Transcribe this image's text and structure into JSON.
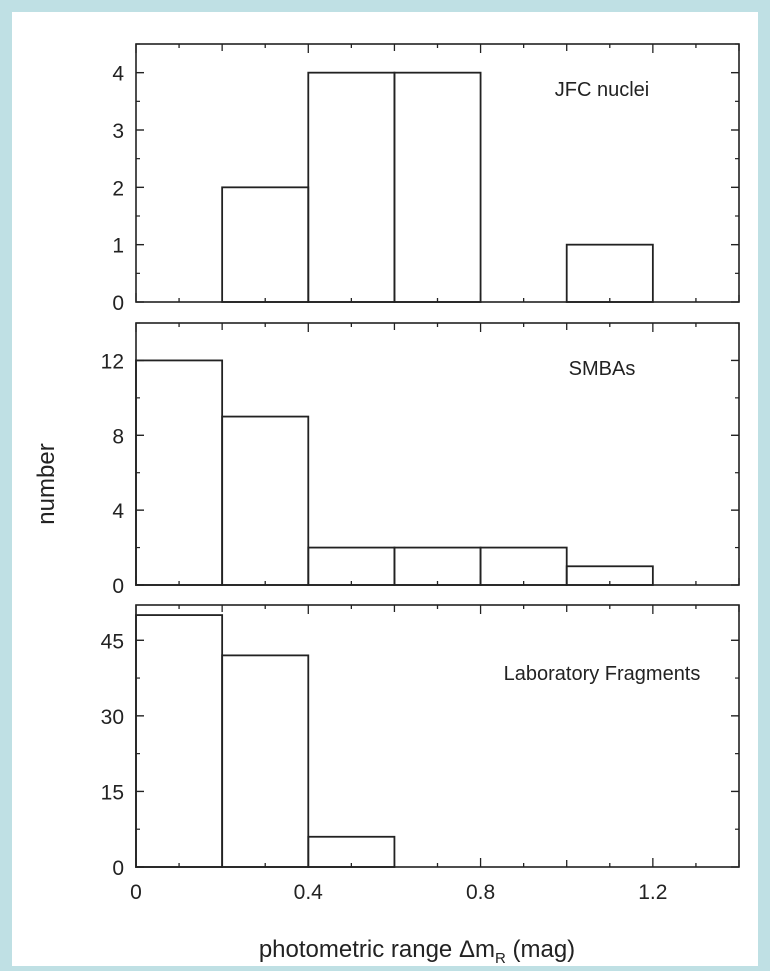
{
  "figure": {
    "ylabel": "number",
    "xlabel_main": "photometric range Δm",
    "xlabel_sub": "R",
    "xlabel_unit": " (mag)"
  },
  "chart_data": [
    {
      "type": "bar",
      "title": "JFC nuclei",
      "bin_edges": [
        0,
        0.2,
        0.4,
        0.6,
        0.8,
        1.0,
        1.2,
        1.4
      ],
      "values": [
        0,
        2,
        4,
        4,
        0,
        1,
        0
      ],
      "ylim": [
        0,
        4.5
      ],
      "yticks": [
        0,
        1,
        2,
        3,
        4
      ],
      "xlim": [
        0,
        1.4
      ],
      "xticks": [
        0,
        0.4,
        0.8,
        1.2
      ],
      "xlabel": "photometric range Δm_R (mag)",
      "ylabel": "number"
    },
    {
      "type": "bar",
      "title": "SMBAs",
      "bin_edges": [
        0,
        0.2,
        0.4,
        0.6,
        0.8,
        1.0,
        1.2,
        1.4
      ],
      "values": [
        12,
        9,
        2,
        2,
        2,
        1,
        0
      ],
      "ylim": [
        0,
        14
      ],
      "yticks": [
        0,
        4,
        8,
        12
      ],
      "xlim": [
        0,
        1.4
      ],
      "xticks": [
        0,
        0.4,
        0.8,
        1.2
      ],
      "xlabel": "photometric range Δm_R (mag)",
      "ylabel": "number"
    },
    {
      "type": "bar",
      "title": "Laboratory Fragments",
      "bin_edges": [
        0,
        0.2,
        0.4,
        0.6,
        0.8,
        1.0,
        1.2,
        1.4
      ],
      "values": [
        50,
        42,
        6,
        0,
        0,
        0,
        0
      ],
      "ylim": [
        0,
        52
      ],
      "yticks": [
        0,
        15,
        30,
        45
      ],
      "xlim": [
        0,
        1.4
      ],
      "xticks": [
        0,
        0.4,
        0.8,
        1.2
      ],
      "xlabel": "photometric range Δm_R (mag)",
      "ylabel": "number"
    }
  ]
}
